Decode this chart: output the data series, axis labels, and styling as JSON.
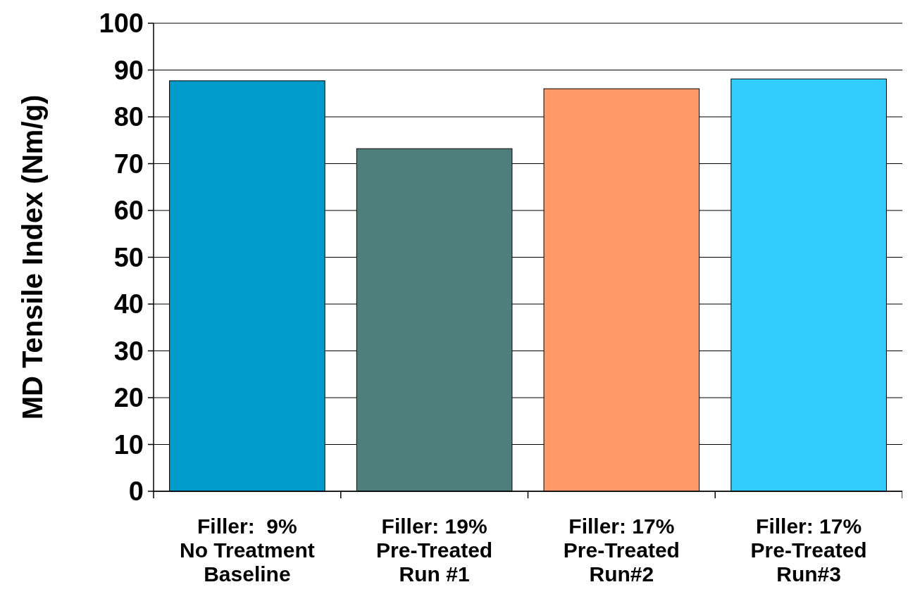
{
  "chart_data": {
    "type": "bar",
    "ylabel": "MD Tensile Index (Nm/g)",
    "categories": [
      "Filler:  9%\nNo Treatment\nBaseline",
      "Filler: 19%\nPre-Treated\nRun #1",
      "Filler: 17%\nPre-Treated\nRun#2",
      "Filler: 17%\nPre-Treated\nRun#3"
    ],
    "values": [
      87.7,
      73.2,
      86.0,
      88.1
    ],
    "colors": [
      "#009ccc",
      "#4f7f7d",
      "#ff9966",
      "#33ccff"
    ],
    "ylim": [
      0,
      100
    ],
    "yticks": [
      0,
      10,
      20,
      30,
      40,
      50,
      60,
      70,
      80,
      90,
      100
    ],
    "grid": "y"
  }
}
